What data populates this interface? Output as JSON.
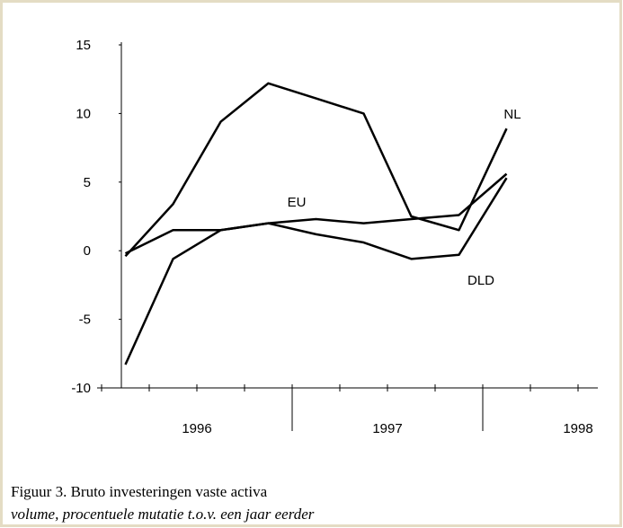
{
  "chart_data": {
    "type": "line",
    "categories": [
      null,
      null,
      null,
      null,
      null,
      null,
      null,
      null,
      null
    ],
    "year_labels": [
      "1996",
      "1997",
      "1998"
    ],
    "series": [
      {
        "name": "NL",
        "color": "#000000",
        "values": [
          -0.4,
          3.4,
          9.4,
          12.2,
          11.1,
          10,
          2.5,
          1.5,
          8.9
        ]
      },
      {
        "name": "EU",
        "color": "#000000",
        "values": [
          -0.2,
          1.5,
          1.5,
          2,
          2.3,
          2,
          2.3,
          2.6,
          5.6
        ]
      },
      {
        "name": "DLD",
        "color": "#000000",
        "values": [
          -8.3,
          -0.6,
          1.5,
          2,
          1.2,
          0.6,
          -0.6,
          -0.3,
          5.3
        ]
      }
    ],
    "ylim": [
      -10,
      15
    ],
    "yticks": [
      -10,
      -5,
      0,
      5,
      10,
      15
    ],
    "caption": "Figuur 3. Bruto investeringen vaste activa",
    "subcaption": "volume, procentuele mutatie t.o.v. een jaar eerder"
  }
}
